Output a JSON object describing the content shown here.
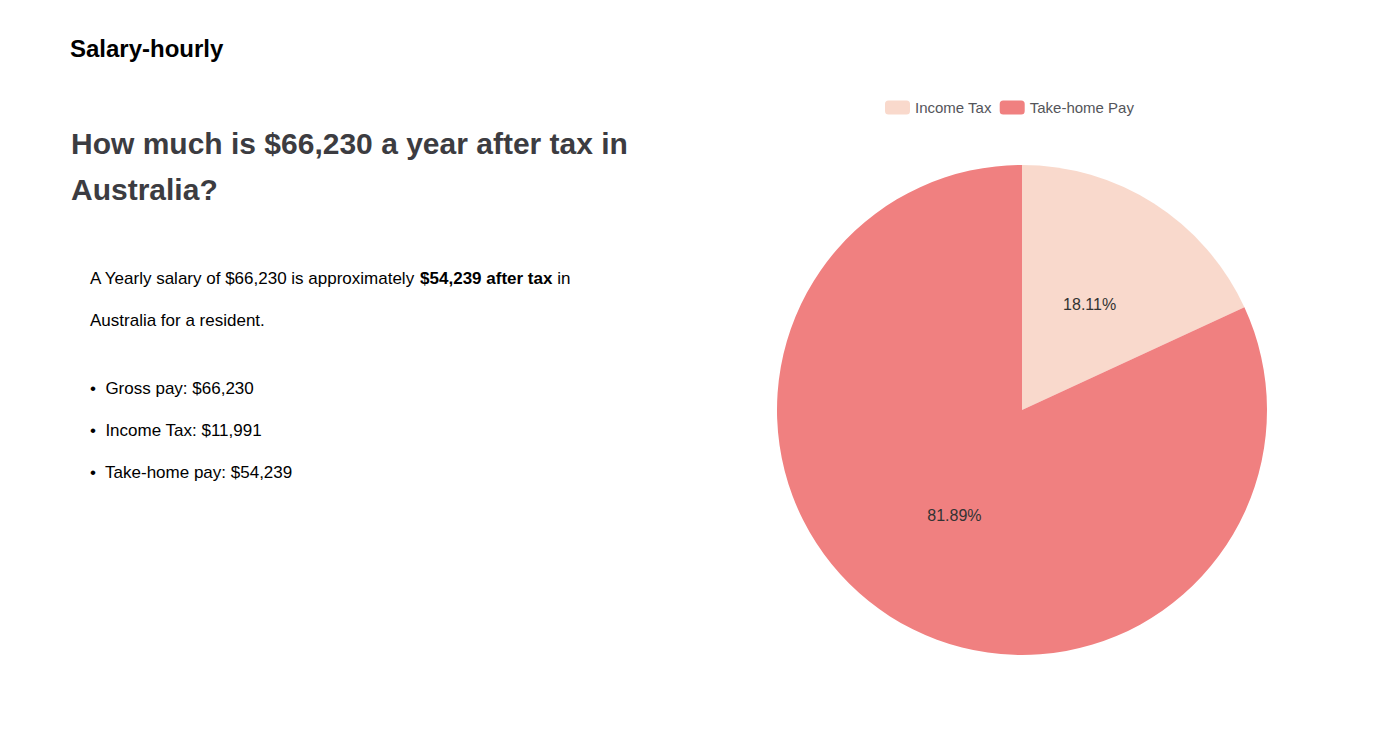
{
  "chart_data": {
    "type": "pie",
    "title": "How much is $66,230 a year after tax in\nAustralia?",
    "annotations": [
      [
        {
          "text": "S",
          "color": "#cc2222"
        },
        {
          "text": "alary-hourly"
        }
      ],
      [
        {
          "text": "A Yearly salary of $66,230 is approximately "
        },
        {
          "text": "$54,239 after tax",
          "color": "#cc2222"
        },
        {
          "text": " in"
        }
      ],
      [
        {
          "text": "Australia for a resident."
        }
      ],
      [
        {
          "text": "•  Gross pay: $66,230"
        }
      ],
      [
        {
          "text": "•  Income Tax: $11,991"
        }
      ],
      [
        {
          "text": "•  Take-home pay: $54,239"
        }
      ]
    ],
    "categories": [
      "Income Tax",
      "Take-home Pay"
    ],
    "values": [
      18.11,
      81.89
    ],
    "value_labels": [
      "18.11%",
      "81.89%"
    ],
    "colors": [
      "#f9d9cc",
      "#f08080"
    ],
    "data_labels": true,
    "legend": "top"
  }
}
